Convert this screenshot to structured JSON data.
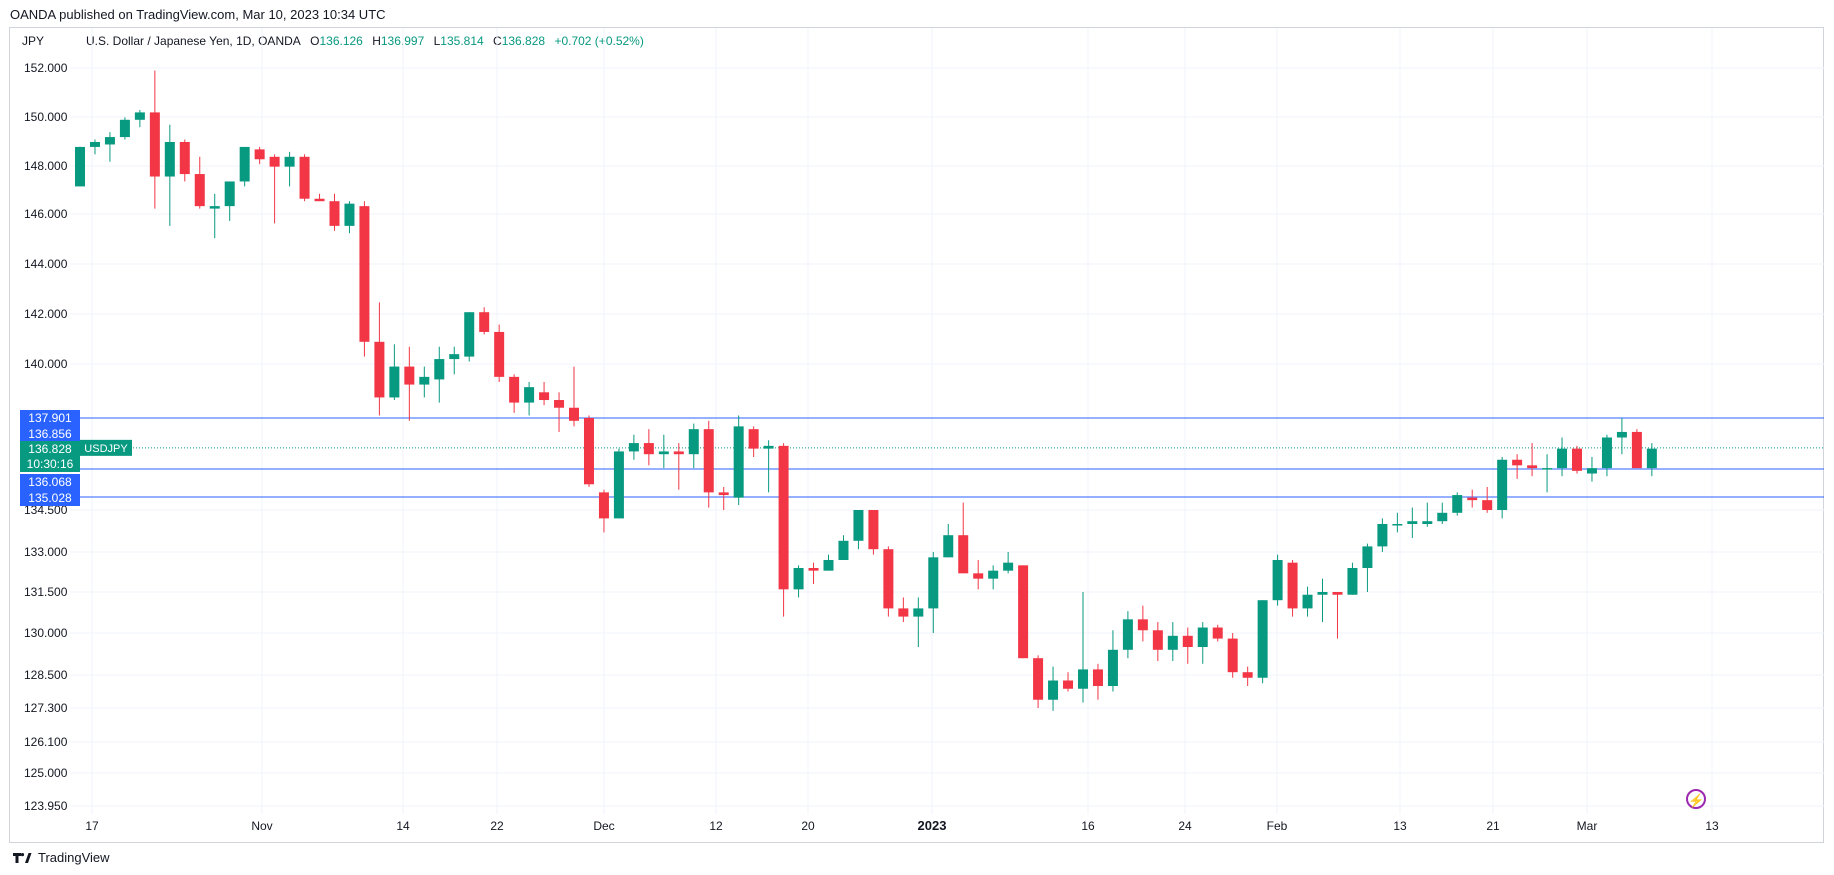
{
  "header": {
    "published": "OANDA published on TradingView.com, Mar 10, 2023 10:34 UTC",
    "currency": "JPY",
    "symbol_title": "U.S. Dollar / Japanese Yen, 1D, OANDA",
    "open_label": "O",
    "open": "136.126",
    "high_label": "H",
    "high": "136.997",
    "low_label": "L",
    "low": "135.814",
    "close_label": "C",
    "close": "136.828",
    "change": "+0.702 (+0.52%)"
  },
  "footer": {
    "brand": "TradingView"
  },
  "colors": {
    "up": "#089981",
    "down": "#f23645",
    "hline": "#2962ff",
    "grid": "#f0f3fa",
    "axis_text": "#131722"
  },
  "chart_data": {
    "type": "candlestick",
    "y_ticks": [
      "152.000",
      "150.000",
      "148.000",
      "146.000",
      "144.000",
      "142.000",
      "140.000",
      "134.500",
      "133.000",
      "131.500",
      "130.000",
      "128.500",
      "127.300",
      "126.100",
      "125.000",
      "123.950"
    ],
    "x_ticks": [
      "17",
      "Nov",
      "14",
      "22",
      "Dec",
      "12",
      "20",
      "2023",
      "16",
      "24",
      "Feb",
      "13",
      "21",
      "Mar",
      "13"
    ],
    "x_ticks_bold": [
      "2023"
    ],
    "horizontal_lines": [
      {
        "label": "137.901"
      },
      {
        "label": "136.068"
      },
      {
        "label": "135.028"
      }
    ],
    "price_tags": [
      {
        "label": "137.901",
        "style": "blue"
      },
      {
        "label": "136.856",
        "style": "blue"
      },
      {
        "label": "136.828",
        "style": "green"
      },
      {
        "label": "10:30:16",
        "style": "green"
      },
      {
        "label": "136.068",
        "style": "blue"
      },
      {
        "label": "135.028",
        "style": "blue"
      }
    ],
    "symbol_tag": "USDJPY",
    "candles": [
      {
        "o": 147.2,
        "h": 148.8,
        "l": 147.2,
        "c": 148.8
      },
      {
        "o": 148.8,
        "h": 149.1,
        "l": 148.5,
        "c": 149.0
      },
      {
        "o": 148.9,
        "h": 149.4,
        "l": 148.2,
        "c": 149.2
      },
      {
        "o": 149.2,
        "h": 150.0,
        "l": 149.1,
        "c": 149.9
      },
      {
        "o": 149.9,
        "h": 150.3,
        "l": 149.6,
        "c": 150.2
      },
      {
        "o": 150.2,
        "h": 151.9,
        "l": 146.3,
        "c": 147.6
      },
      {
        "o": 147.6,
        "h": 149.7,
        "l": 145.6,
        "c": 149.0
      },
      {
        "o": 149.0,
        "h": 149.1,
        "l": 147.4,
        "c": 147.7
      },
      {
        "o": 147.7,
        "h": 148.4,
        "l": 146.3,
        "c": 146.4
      },
      {
        "o": 146.3,
        "h": 146.9,
        "l": 145.1,
        "c": 146.4
      },
      {
        "o": 146.4,
        "h": 147.4,
        "l": 145.8,
        "c": 147.4
      },
      {
        "o": 147.4,
        "h": 148.8,
        "l": 147.2,
        "c": 148.8
      },
      {
        "o": 148.7,
        "h": 148.8,
        "l": 148.1,
        "c": 148.3
      },
      {
        "o": 148.4,
        "h": 148.5,
        "l": 145.7,
        "c": 148.0
      },
      {
        "o": 148.0,
        "h": 148.6,
        "l": 147.2,
        "c": 148.4
      },
      {
        "o": 148.4,
        "h": 148.5,
        "l": 146.6,
        "c": 146.7
      },
      {
        "o": 146.7,
        "h": 146.9,
        "l": 146.6,
        "c": 146.6
      },
      {
        "o": 146.6,
        "h": 146.9,
        "l": 145.4,
        "c": 145.6
      },
      {
        "o": 145.6,
        "h": 146.6,
        "l": 145.3,
        "c": 146.5
      },
      {
        "o": 146.4,
        "h": 146.6,
        "l": 140.3,
        "c": 140.9
      },
      {
        "o": 140.9,
        "h": 142.5,
        "l": 138.0,
        "c": 138.7
      },
      {
        "o": 138.7,
        "h": 140.8,
        "l": 138.6,
        "c": 139.9
      },
      {
        "o": 139.9,
        "h": 140.7,
        "l": 137.8,
        "c": 139.2
      },
      {
        "o": 139.2,
        "h": 139.9,
        "l": 138.7,
        "c": 139.5
      },
      {
        "o": 139.4,
        "h": 140.7,
        "l": 138.5,
        "c": 140.2
      },
      {
        "o": 140.2,
        "h": 140.7,
        "l": 139.6,
        "c": 140.4
      },
      {
        "o": 140.3,
        "h": 142.1,
        "l": 140.1,
        "c": 142.1
      },
      {
        "o": 142.1,
        "h": 142.3,
        "l": 141.2,
        "c": 141.3
      },
      {
        "o": 141.3,
        "h": 141.6,
        "l": 139.3,
        "c": 139.5
      },
      {
        "o": 139.5,
        "h": 139.6,
        "l": 138.1,
        "c": 138.5
      },
      {
        "o": 138.5,
        "h": 139.3,
        "l": 138.0,
        "c": 139.1
      },
      {
        "o": 138.9,
        "h": 139.3,
        "l": 138.4,
        "c": 138.6
      },
      {
        "o": 138.6,
        "h": 138.9,
        "l": 137.4,
        "c": 138.3
      },
      {
        "o": 138.3,
        "h": 139.9,
        "l": 137.6,
        "c": 137.8
      },
      {
        "o": 137.9,
        "h": 138.0,
        "l": 135.4,
        "c": 135.5
      },
      {
        "o": 135.2,
        "h": 135.3,
        "l": 133.7,
        "c": 134.2
      },
      {
        "o": 134.2,
        "h": 136.8,
        "l": 134.2,
        "c": 136.7
      },
      {
        "o": 136.7,
        "h": 137.3,
        "l": 136.4,
        "c": 137.0
      },
      {
        "o": 137.0,
        "h": 137.5,
        "l": 136.2,
        "c": 136.6
      },
      {
        "o": 136.6,
        "h": 137.3,
        "l": 136.1,
        "c": 136.7
      },
      {
        "o": 136.7,
        "h": 137.0,
        "l": 135.3,
        "c": 136.6
      },
      {
        "o": 136.6,
        "h": 137.7,
        "l": 136.1,
        "c": 137.5
      },
      {
        "o": 137.5,
        "h": 137.8,
        "l": 134.6,
        "c": 135.2
      },
      {
        "o": 135.2,
        "h": 135.4,
        "l": 134.5,
        "c": 135.1
      },
      {
        "o": 135.0,
        "h": 138.0,
        "l": 134.7,
        "c": 137.6
      },
      {
        "o": 137.5,
        "h": 137.6,
        "l": 136.5,
        "c": 136.8
      },
      {
        "o": 136.8,
        "h": 137.1,
        "l": 135.2,
        "c": 136.9
      },
      {
        "o": 136.9,
        "h": 137.0,
        "l": 130.6,
        "c": 131.6
      },
      {
        "o": 131.6,
        "h": 132.5,
        "l": 131.3,
        "c": 132.4
      },
      {
        "o": 132.4,
        "h": 132.6,
        "l": 131.8,
        "c": 132.3
      },
      {
        "o": 132.3,
        "h": 132.9,
        "l": 132.3,
        "c": 132.7
      },
      {
        "o": 132.7,
        "h": 133.6,
        "l": 132.7,
        "c": 133.4
      },
      {
        "o": 133.4,
        "h": 134.5,
        "l": 133.1,
        "c": 134.5
      },
      {
        "o": 134.5,
        "h": 134.5,
        "l": 132.9,
        "c": 133.1
      },
      {
        "o": 133.1,
        "h": 133.2,
        "l": 130.6,
        "c": 130.9
      },
      {
        "o": 130.9,
        "h": 131.3,
        "l": 130.4,
        "c": 130.6
      },
      {
        "o": 130.6,
        "h": 131.3,
        "l": 129.5,
        "c": 130.9
      },
      {
        "o": 130.9,
        "h": 133.0,
        "l": 130.0,
        "c": 132.8
      },
      {
        "o": 132.8,
        "h": 134.0,
        "l": 132.8,
        "c": 133.6
      },
      {
        "o": 133.6,
        "h": 134.8,
        "l": 132.2,
        "c": 132.2
      },
      {
        "o": 132.2,
        "h": 132.7,
        "l": 131.6,
        "c": 132.0
      },
      {
        "o": 132.0,
        "h": 132.5,
        "l": 131.6,
        "c": 132.3
      },
      {
        "o": 132.3,
        "h": 133.0,
        "l": 132.2,
        "c": 132.6
      },
      {
        "o": 132.5,
        "h": 132.5,
        "l": 129.1,
        "c": 129.1
      },
      {
        "o": 129.1,
        "h": 129.2,
        "l": 127.3,
        "c": 127.6
      },
      {
        "o": 127.6,
        "h": 128.8,
        "l": 127.2,
        "c": 128.3
      },
      {
        "o": 128.3,
        "h": 128.6,
        "l": 127.9,
        "c": 128.0
      },
      {
        "o": 128.0,
        "h": 131.5,
        "l": 127.5,
        "c": 128.7
      },
      {
        "o": 128.7,
        "h": 128.9,
        "l": 127.6,
        "c": 128.1
      },
      {
        "o": 128.1,
        "h": 130.1,
        "l": 127.9,
        "c": 129.4
      },
      {
        "o": 129.4,
        "h": 130.8,
        "l": 129.1,
        "c": 130.5
      },
      {
        "o": 130.5,
        "h": 131.0,
        "l": 129.7,
        "c": 130.1
      },
      {
        "o": 130.1,
        "h": 130.4,
        "l": 129.0,
        "c": 129.4
      },
      {
        "o": 129.4,
        "h": 130.4,
        "l": 129.0,
        "c": 129.9
      },
      {
        "o": 129.9,
        "h": 130.2,
        "l": 128.9,
        "c": 129.5
      },
      {
        "o": 129.5,
        "h": 130.4,
        "l": 128.9,
        "c": 130.2
      },
      {
        "o": 130.2,
        "h": 130.3,
        "l": 129.7,
        "c": 129.8
      },
      {
        "o": 129.8,
        "h": 130.0,
        "l": 128.4,
        "c": 128.6
      },
      {
        "o": 128.6,
        "h": 128.8,
        "l": 128.1,
        "c": 128.4
      },
      {
        "o": 128.4,
        "h": 131.2,
        "l": 128.2,
        "c": 131.2
      },
      {
        "o": 131.2,
        "h": 132.9,
        "l": 131.0,
        "c": 132.7
      },
      {
        "o": 132.6,
        "h": 132.7,
        "l": 130.6,
        "c": 130.9
      },
      {
        "o": 130.9,
        "h": 131.7,
        "l": 130.6,
        "c": 131.4
      },
      {
        "o": 131.4,
        "h": 132.0,
        "l": 130.4,
        "c": 131.5
      },
      {
        "o": 131.5,
        "h": 131.5,
        "l": 129.8,
        "c": 131.4
      },
      {
        "o": 131.4,
        "h": 132.6,
        "l": 131.4,
        "c": 132.4
      },
      {
        "o": 132.4,
        "h": 133.3,
        "l": 131.5,
        "c": 133.2
      },
      {
        "o": 133.2,
        "h": 134.2,
        "l": 133.0,
        "c": 134.0
      },
      {
        "o": 134.0,
        "h": 134.4,
        "l": 133.7,
        "c": 134.0
      },
      {
        "o": 134.0,
        "h": 134.6,
        "l": 133.5,
        "c": 134.1
      },
      {
        "o": 134.0,
        "h": 134.8,
        "l": 133.9,
        "c": 134.1
      },
      {
        "o": 134.1,
        "h": 134.8,
        "l": 134.0,
        "c": 134.4
      },
      {
        "o": 134.4,
        "h": 135.2,
        "l": 134.3,
        "c": 135.1
      },
      {
        "o": 135.0,
        "h": 135.3,
        "l": 134.6,
        "c": 134.9
      },
      {
        "o": 134.9,
        "h": 135.4,
        "l": 134.4,
        "c": 134.5
      },
      {
        "o": 134.5,
        "h": 136.5,
        "l": 134.2,
        "c": 136.4
      },
      {
        "o": 136.4,
        "h": 136.6,
        "l": 135.7,
        "c": 136.2
      },
      {
        "o": 136.2,
        "h": 137.0,
        "l": 135.8,
        "c": 136.1
      },
      {
        "o": 136.1,
        "h": 136.6,
        "l": 135.2,
        "c": 136.1
      },
      {
        "o": 136.1,
        "h": 137.2,
        "l": 135.8,
        "c": 136.8
      },
      {
        "o": 136.8,
        "h": 136.9,
        "l": 135.9,
        "c": 136.0
      },
      {
        "o": 135.9,
        "h": 136.5,
        "l": 135.6,
        "c": 136.1
      },
      {
        "o": 136.1,
        "h": 137.3,
        "l": 135.8,
        "c": 137.2
      },
      {
        "o": 137.2,
        "h": 137.9,
        "l": 136.6,
        "c": 137.4
      },
      {
        "o": 137.4,
        "h": 137.5,
        "l": 136.1,
        "c": 136.1
      },
      {
        "o": 136.1,
        "h": 137.0,
        "l": 135.8,
        "c": 136.8
      }
    ]
  }
}
